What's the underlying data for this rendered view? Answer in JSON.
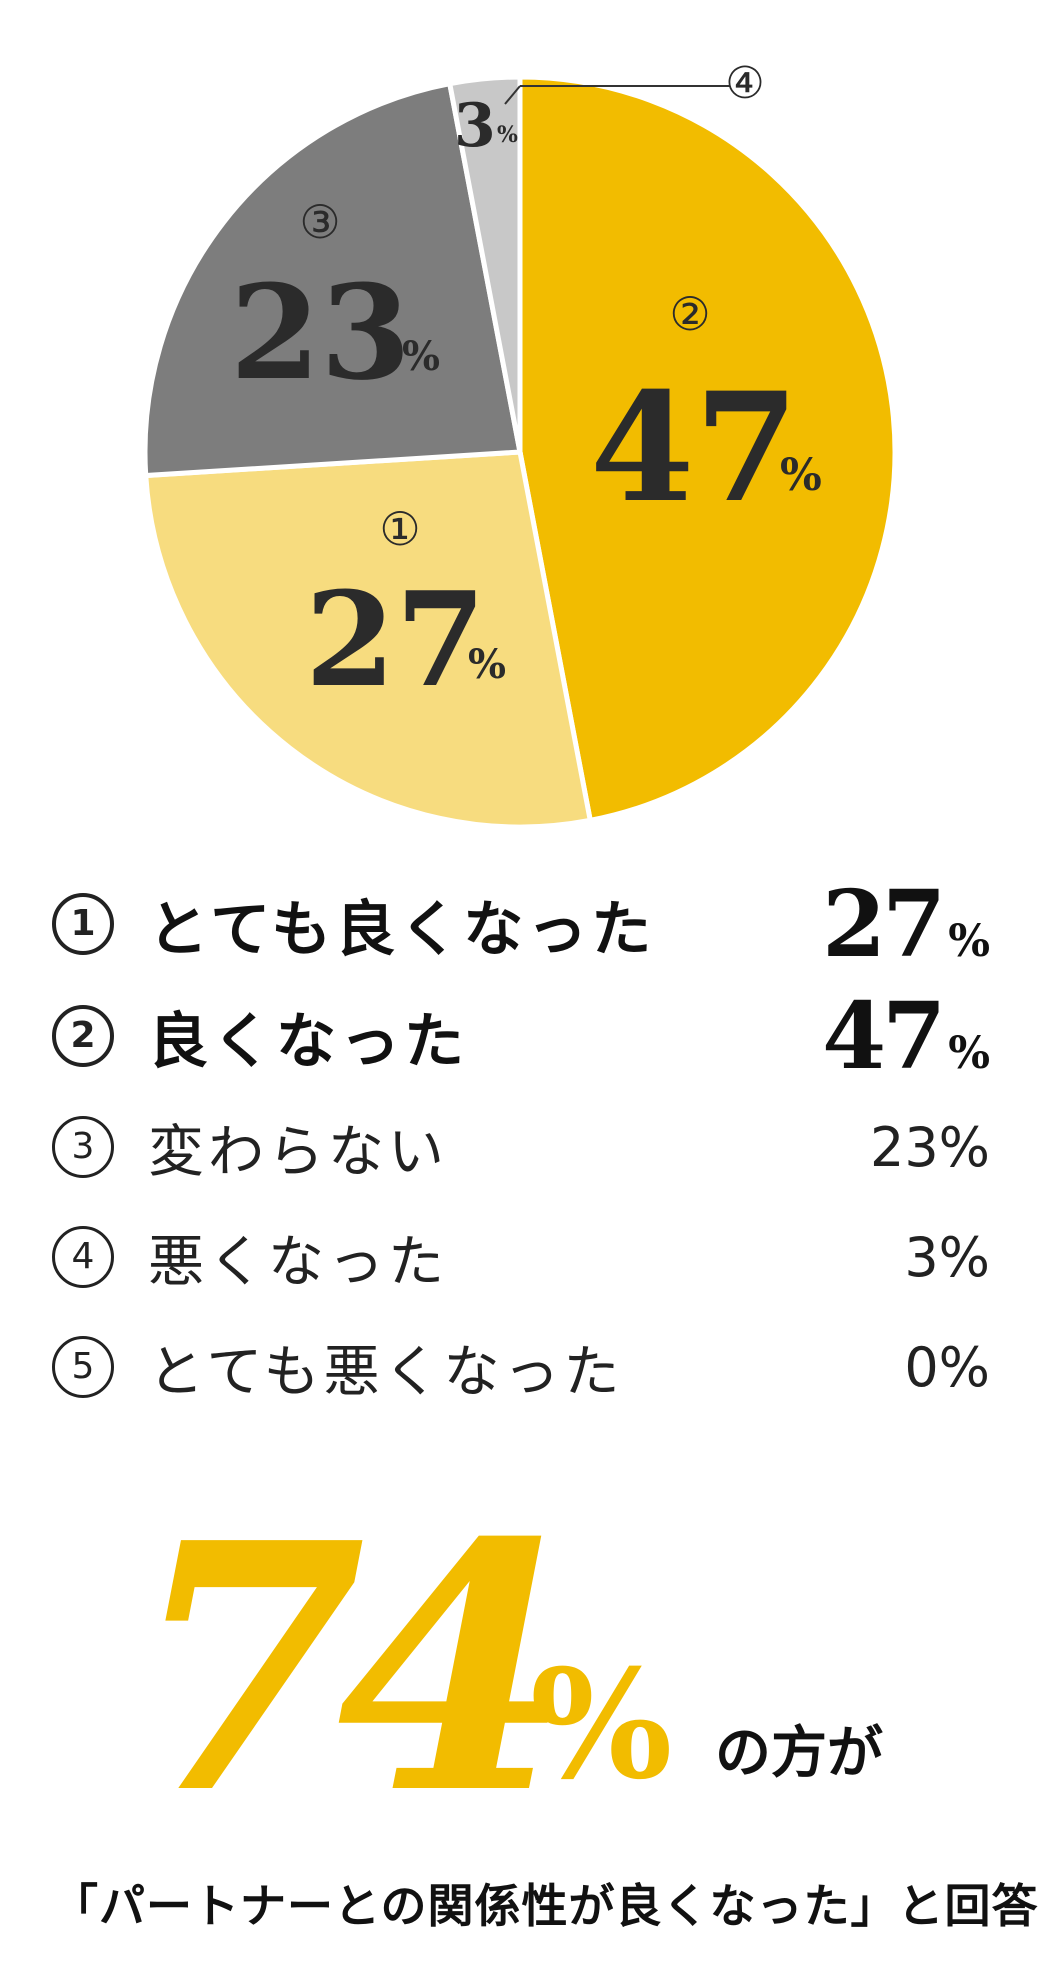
{
  "chart_data": {
    "type": "pie",
    "start": "top, clockwise",
    "slices": [
      {
        "id": "②",
        "value": 47,
        "color": "#f2bc00"
      },
      {
        "id": "①",
        "value": 27,
        "color": "#f7dc7f"
      },
      {
        "id": "③",
        "value": 23,
        "color": "#7d7d7d"
      },
      {
        "id": "④",
        "value": 3,
        "color": "#c8c8c8"
      }
    ],
    "labels": {
      "s2": {
        "circ": "②",
        "num": "47",
        "pct": "%"
      },
      "s1": {
        "circ": "①",
        "num": "27",
        "pct": "%"
      },
      "s3": {
        "circ": "③",
        "num": "23",
        "pct": "%"
      },
      "s4": {
        "circ": "④",
        "num": "3",
        "pct": "%"
      }
    }
  },
  "legend": [
    {
      "marker": "1",
      "label": "とても良くなった",
      "value_num": "27",
      "value_pct": "%",
      "emphasis": true
    },
    {
      "marker": "2",
      "label": "良くなった",
      "value_num": "47",
      "value_pct": "%",
      "emphasis": true
    },
    {
      "marker": "3",
      "label": "変わらない",
      "value": "23%",
      "emphasis": false
    },
    {
      "marker": "4",
      "label": "悪くなった",
      "value": "3%",
      "emphasis": false
    },
    {
      "marker": "5",
      "label": "とても悪くなった",
      "value": "0%",
      "emphasis": false
    }
  ],
  "headline": {
    "number": "74",
    "percent": "%",
    "suffix": "の方が",
    "color": "#f2bc00"
  },
  "caption": "「パートナーとの関係性が良くなった」と回答！"
}
